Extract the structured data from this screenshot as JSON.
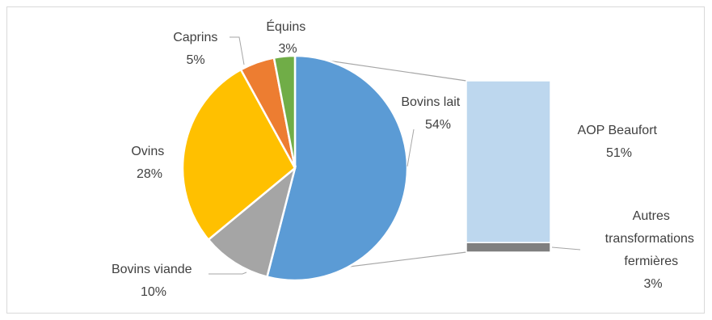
{
  "chart_data": {
    "type": "pie",
    "title": "",
    "slices": [
      {
        "label": "Bovins lait",
        "percent_label": "54%",
        "value": 54,
        "color": "#5b9bd5"
      },
      {
        "label": "Bovins viande",
        "percent_label": "10%",
        "value": 10,
        "color": "#a5a5a5"
      },
      {
        "label": "Ovins",
        "percent_label": "28%",
        "value": 28,
        "color": "#ffc000"
      },
      {
        "label": "Caprins",
        "percent_label": "5%",
        "value": 5,
        "color": "#ed7d31"
      },
      {
        "label": "Équins",
        "percent_label": "3%",
        "value": 3,
        "color": "#70ad47"
      }
    ],
    "breakdown_of": "Bovins lait",
    "breakdown": [
      {
        "label": "AOP Beaufort",
        "percent_label": "51%",
        "value": 51,
        "color": "#bdd7ee"
      },
      {
        "label_lines": [
          "Autres",
          "transformations",
          "fermières"
        ],
        "percent_label": "3%",
        "value": 3,
        "color": "#7f7f7f"
      }
    ]
  }
}
